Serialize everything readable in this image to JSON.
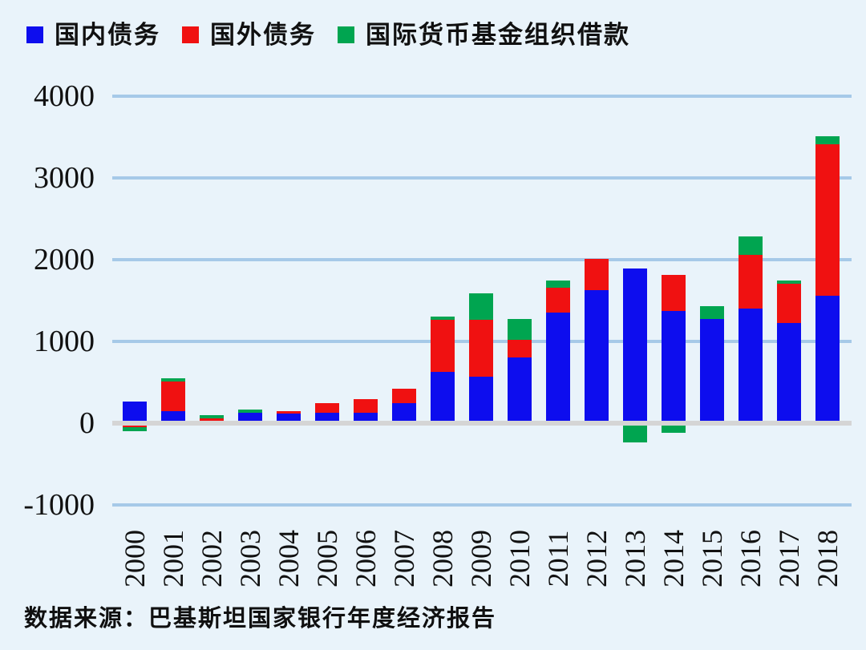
{
  "page": {
    "background": "#e9f3fa"
  },
  "legend": {
    "items": [
      {
        "label": "国内债务",
        "color": "#0d0dee",
        "icon": "blue-square-swatch"
      },
      {
        "label": "国外债务",
        "color": "#f01111",
        "icon": "red-square-swatch"
      },
      {
        "label": "国际货币基金组织借款",
        "color": "#00a550",
        "icon": "green-square-swatch"
      }
    ]
  },
  "source_note": "数据来源：巴基斯坦国家银行年度经济报告",
  "chart_data": {
    "type": "bar",
    "stacked": true,
    "title": "",
    "xlabel": "",
    "ylabel": "",
    "categories": [
      "2000",
      "2001",
      "2002",
      "2003",
      "2004",
      "2005",
      "2006",
      "2007",
      "2008",
      "2009",
      "2010",
      "2011",
      "2012",
      "2013",
      "2014",
      "2015",
      "2016",
      "2017",
      "2018"
    ],
    "series": [
      {
        "name": "国内债务",
        "key": "domestic-debt",
        "color": "#0d0dee",
        "values": [
          260,
          150,
          20,
          125,
          120,
          125,
          130,
          250,
          630,
          570,
          800,
          1350,
          1625,
          1890,
          1375,
          1270,
          1400,
          1230,
          1555
        ]
      },
      {
        "name": "国外债务",
        "key": "foreign-debt",
        "color": "#f01111",
        "values": [
          -50,
          360,
          40,
          0,
          30,
          125,
          165,
          175,
          630,
          690,
          220,
          310,
          385,
          0,
          440,
          0,
          660,
          475,
          1855
        ]
      },
      {
        "name": "国际货币基金组织借款",
        "key": "imf-borrowing",
        "color": "#00a550",
        "values": [
          -50,
          35,
          40,
          45,
          0,
          0,
          0,
          0,
          45,
          330,
          250,
          90,
          -30,
          -240,
          -120,
          160,
          225,
          45,
          100
        ]
      }
    ],
    "ylim": [
      -1000,
      4000
    ],
    "yticks": [
      4000,
      3000,
      2000,
      1000,
      0,
      -1000
    ],
    "grid": true,
    "gridline_color": "#a6c9e8",
    "zero_line_color": "#d5d5d5",
    "legend_position": "top-left"
  }
}
